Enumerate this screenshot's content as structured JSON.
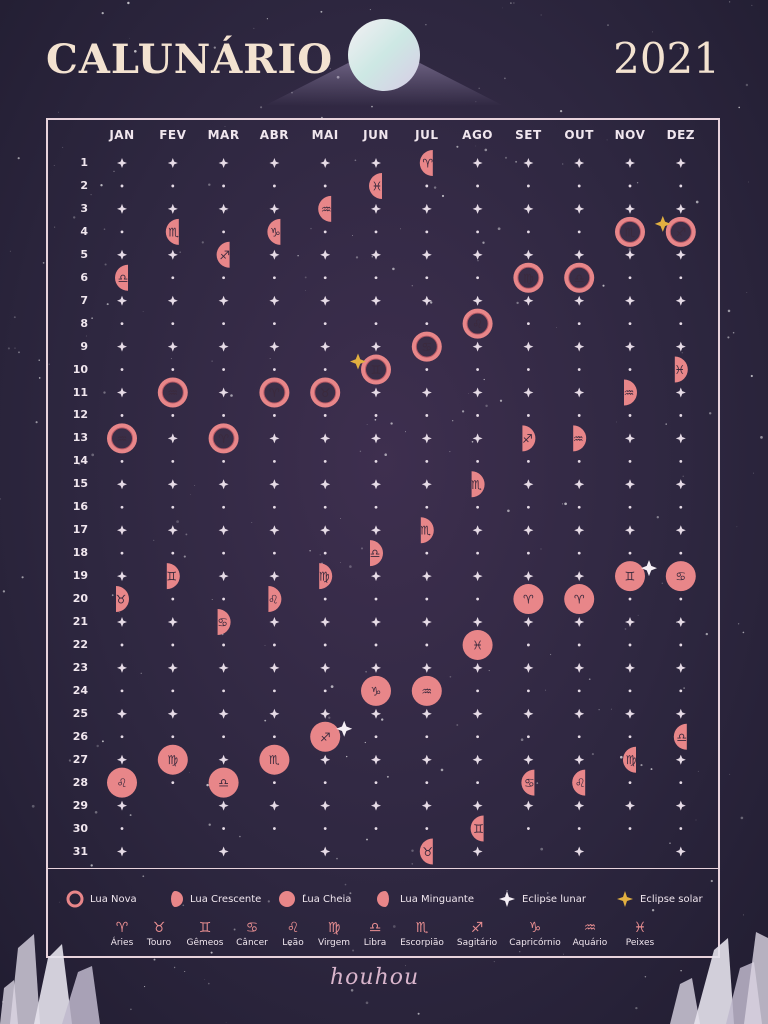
{
  "header": {
    "title": "CALUNÁRIO",
    "year": "2021"
  },
  "months": [
    "JAN",
    "FEV",
    "MAR",
    "ABR",
    "MAI",
    "JUN",
    "JUL",
    "AGO",
    "SET",
    "OUT",
    "NOV",
    "DEZ"
  ],
  "days": [
    "1",
    "2",
    "3",
    "4",
    "5",
    "6",
    "7",
    "8",
    "9",
    "10",
    "11",
    "12",
    "13",
    "14",
    "15",
    "16",
    "17",
    "18",
    "19",
    "20",
    "21",
    "22",
    "23",
    "24",
    "25",
    "26",
    "27",
    "28",
    "29",
    "30",
    "31"
  ],
  "month_lengths": [
    31,
    28,
    31,
    30,
    31,
    30,
    31,
    31,
    30,
    31,
    30,
    31
  ],
  "phases": [
    {
      "m": 1,
      "d": 6,
      "p": "minguante",
      "s": "♎"
    },
    {
      "m": 1,
      "d": 13,
      "p": "nova",
      "s": "♒"
    },
    {
      "m": 1,
      "d": 20,
      "p": "crescente",
      "s": "♉"
    },
    {
      "m": 1,
      "d": 28,
      "p": "cheia",
      "s": "♌"
    },
    {
      "m": 2,
      "d": 4,
      "p": "minguante",
      "s": "♏"
    },
    {
      "m": 2,
      "d": 11,
      "p": "nova",
      "s": "♒"
    },
    {
      "m": 2,
      "d": 19,
      "p": "crescente",
      "s": "♊"
    },
    {
      "m": 2,
      "d": 27,
      "p": "cheia",
      "s": "♍"
    },
    {
      "m": 3,
      "d": 5,
      "p": "minguante",
      "s": "♐"
    },
    {
      "m": 3,
      "d": 13,
      "p": "nova",
      "s": "♈"
    },
    {
      "m": 3,
      "d": 21,
      "p": "crescente",
      "s": "♋"
    },
    {
      "m": 3,
      "d": 28,
      "p": "cheia",
      "s": "♎"
    },
    {
      "m": 4,
      "d": 4,
      "p": "minguante",
      "s": "♑"
    },
    {
      "m": 4,
      "d": 11,
      "p": "nova",
      "s": "♈"
    },
    {
      "m": 4,
      "d": 20,
      "p": "crescente",
      "s": "♌"
    },
    {
      "m": 4,
      "d": 27,
      "p": "cheia",
      "s": "♏"
    },
    {
      "m": 5,
      "d": 3,
      "p": "minguante",
      "s": "♒"
    },
    {
      "m": 5,
      "d": 11,
      "p": "nova",
      "s": "♉"
    },
    {
      "m": 5,
      "d": 19,
      "p": "crescente",
      "s": "♍"
    },
    {
      "m": 5,
      "d": 26,
      "p": "cheia",
      "s": "♐",
      "e": "lunar"
    },
    {
      "m": 6,
      "d": 2,
      "p": "minguante",
      "s": "♓"
    },
    {
      "m": 6,
      "d": 10,
      "p": "nova",
      "s": "♊",
      "e": "solar"
    },
    {
      "m": 6,
      "d": 18,
      "p": "crescente",
      "s": "♎"
    },
    {
      "m": 6,
      "d": 24,
      "p": "cheia",
      "s": "♑"
    },
    {
      "m": 7,
      "d": 1,
      "p": "minguante",
      "s": "♈"
    },
    {
      "m": 7,
      "d": 9,
      "p": "nova",
      "s": "♋"
    },
    {
      "m": 7,
      "d": 17,
      "p": "crescente",
      "s": "♏"
    },
    {
      "m": 7,
      "d": 24,
      "p": "cheia",
      "s": "♒"
    },
    {
      "m": 7,
      "d": 31,
      "p": "minguante",
      "s": "♉"
    },
    {
      "m": 8,
      "d": 8,
      "p": "nova",
      "s": "♌"
    },
    {
      "m": 8,
      "d": 15,
      "p": "crescente",
      "s": "♏"
    },
    {
      "m": 8,
      "d": 22,
      "p": "cheia",
      "s": "♓"
    },
    {
      "m": 8,
      "d": 30,
      "p": "minguante",
      "s": "♊"
    },
    {
      "m": 9,
      "d": 6,
      "p": "nova",
      "s": "♍"
    },
    {
      "m": 9,
      "d": 13,
      "p": "crescente",
      "s": "♐"
    },
    {
      "m": 9,
      "d": 20,
      "p": "cheia",
      "s": "♈"
    },
    {
      "m": 9,
      "d": 28,
      "p": "minguante",
      "s": "♋"
    },
    {
      "m": 10,
      "d": 6,
      "p": "nova",
      "s": "♎"
    },
    {
      "m": 10,
      "d": 13,
      "p": "crescente",
      "s": "♒"
    },
    {
      "m": 10,
      "d": 20,
      "p": "cheia",
      "s": "♈"
    },
    {
      "m": 10,
      "d": 28,
      "p": "minguante",
      "s": "♌"
    },
    {
      "m": 11,
      "d": 4,
      "p": "nova",
      "s": "♏"
    },
    {
      "m": 11,
      "d": 11,
      "p": "crescente",
      "s": "♒"
    },
    {
      "m": 11,
      "d": 19,
      "p": "cheia",
      "s": "♊",
      "e": "lunar"
    },
    {
      "m": 11,
      "d": 27,
      "p": "minguante",
      "s": "♍"
    },
    {
      "m": 12,
      "d": 4,
      "p": "nova",
      "s": "♐",
      "e": "solar"
    },
    {
      "m": 12,
      "d": 10,
      "p": "crescente",
      "s": "♓"
    },
    {
      "m": 12,
      "d": 19,
      "p": "cheia",
      "s": "♋"
    },
    {
      "m": 12,
      "d": 26,
      "p": "minguante",
      "s": "♎"
    }
  ],
  "legend": [
    {
      "key": "nova",
      "label": "Lua Nova"
    },
    {
      "key": "crescente",
      "label": "Lua Crescente"
    },
    {
      "key": "cheia",
      "label": "Lua Cheia"
    },
    {
      "key": "minguante",
      "label": "Lua Minguante"
    },
    {
      "key": "lunar",
      "label": "Eclipse lunar"
    },
    {
      "key": "solar",
      "label": "Eclipse solar"
    }
  ],
  "zodiac": [
    {
      "symbol": "♈",
      "name": "Áries"
    },
    {
      "symbol": "♉",
      "name": "Touro"
    },
    {
      "symbol": "♊",
      "name": "Gêmeos"
    },
    {
      "symbol": "♋",
      "name": "Câncer"
    },
    {
      "symbol": "♌",
      "name": "Leão"
    },
    {
      "symbol": "♍",
      "name": "Virgem"
    },
    {
      "symbol": "♎",
      "name": "Libra"
    },
    {
      "symbol": "♏",
      "name": "Escorpião"
    },
    {
      "symbol": "♐",
      "name": "Sagitário"
    },
    {
      "symbol": "♑",
      "name": "Capricórnio"
    },
    {
      "symbol": "♒",
      "name": "Aquário"
    },
    {
      "symbol": "♓",
      "name": "Peixes"
    }
  ],
  "signature": "houhou",
  "colors": {
    "moon": "#e88689",
    "moon_dark": "#b85a66",
    "star": "#e6dbe6",
    "gold": "#e2b040",
    "frame": "#e8d3dc"
  }
}
